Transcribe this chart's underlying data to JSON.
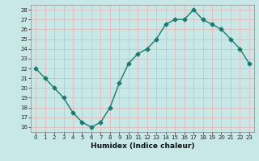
{
  "x": [
    0,
    1,
    2,
    3,
    4,
    5,
    6,
    7,
    8,
    9,
    10,
    11,
    12,
    13,
    14,
    15,
    16,
    17,
    18,
    19,
    20,
    21,
    22,
    23
  ],
  "y": [
    22,
    21,
    20,
    19,
    17.5,
    16.5,
    16,
    16.5,
    18,
    20.5,
    22.5,
    23.5,
    24,
    25,
    26.5,
    27,
    27,
    28,
    27,
    26.5,
    26,
    25,
    24,
    22.5
  ],
  "line_color": "#1a7a6e",
  "marker": "D",
  "marker_size": 2.5,
  "bg_color": "#c8e8e8",
  "grid_color": "#e8b8b8",
  "xlabel": "Humidex (Indice chaleur)",
  "xlim": [
    -0.5,
    23.5
  ],
  "ylim": [
    15.5,
    28.5
  ],
  "yticks": [
    16,
    17,
    18,
    19,
    20,
    21,
    22,
    23,
    24,
    25,
    26,
    27,
    28
  ],
  "xticks": [
    0,
    1,
    2,
    3,
    4,
    5,
    6,
    7,
    8,
    9,
    10,
    11,
    12,
    13,
    14,
    15,
    16,
    17,
    18,
    19,
    20,
    21,
    22,
    23
  ]
}
